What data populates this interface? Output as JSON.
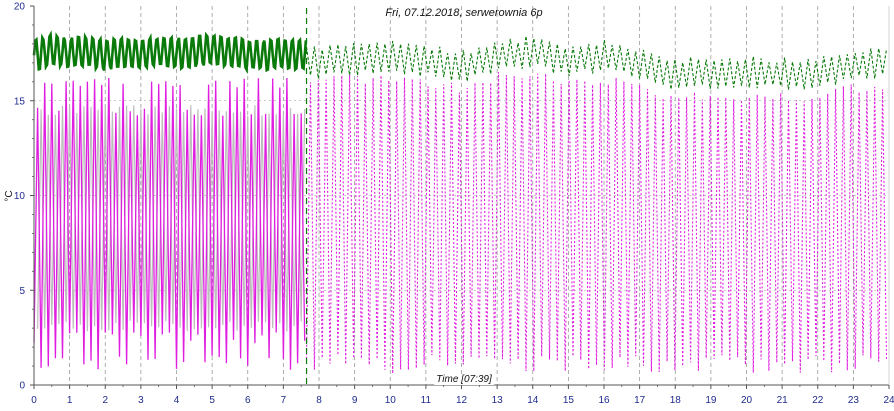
{
  "chart_data": {
    "type": "line",
    "title": "Fri, 07.12.2018, serwerownia 6p",
    "xlabel": "Time [07:39]",
    "ylabel": "°C",
    "xlim": [
      0,
      24
    ],
    "ylim": [
      0,
      20
    ],
    "x_ticks": [
      "0",
      "1",
      "2",
      "3",
      "4",
      "5",
      "6",
      "7",
      "8",
      "9",
      "10",
      "11",
      "12",
      "13",
      "14",
      "15",
      "16",
      "17",
      "18",
      "19",
      "20",
      "21",
      "22",
      "23",
      "24"
    ],
    "y_ticks": [
      "0",
      "5",
      "10",
      "15",
      "20"
    ],
    "grid": true,
    "cursor_time": 7.65,
    "colors": {
      "green": "#0a7a0a",
      "magenta": "#e01ee0",
      "gray": "#bdbdbd",
      "grid": "#9a9a9a",
      "axis": "#555555",
      "tick_text": "#1f2b8f"
    },
    "series": [
      {
        "color_key": "green",
        "style": "solid",
        "x_range": [
          0,
          7.65
        ],
        "base": 17.3,
        "amp_low": 0.75,
        "amp_high": 0.9,
        "period_h": 0.2,
        "envelope": [
          [
            0,
            17.4
          ],
          [
            0.5,
            17.7
          ],
          [
            1.0,
            17.5
          ],
          [
            1.5,
            17.6
          ],
          [
            2.0,
            17.4
          ],
          [
            2.5,
            17.6
          ],
          [
            3.0,
            17.5
          ],
          [
            3.5,
            17.6
          ],
          [
            4.0,
            17.5
          ],
          [
            4.5,
            17.6
          ],
          [
            5.0,
            17.7
          ],
          [
            5.5,
            17.6
          ],
          [
            6.0,
            17.4
          ],
          [
            6.5,
            17.4
          ],
          [
            7.0,
            17.5
          ],
          [
            7.65,
            17.4
          ]
        ]
      },
      {
        "color_key": "green",
        "style": "dashed",
        "x_range": [
          7.65,
          24
        ],
        "amp_low": 0.8,
        "amp_high": 0.8,
        "period_h": 0.22,
        "envelope": [
          [
            7.65,
            17.0
          ],
          [
            9,
            17.2
          ],
          [
            10,
            17.3
          ],
          [
            11,
            17.1
          ],
          [
            12,
            16.8
          ],
          [
            13,
            17.3
          ],
          [
            14,
            17.6
          ],
          [
            15,
            17.1
          ],
          [
            16,
            17.4
          ],
          [
            17,
            16.9
          ],
          [
            18,
            16.4
          ],
          [
            19,
            16.5
          ],
          [
            20,
            16.5
          ],
          [
            21,
            16.4
          ],
          [
            22,
            16.5
          ],
          [
            23,
            16.9
          ],
          [
            24,
            17.0
          ]
        ]
      },
      {
        "color_key": "magenta",
        "style": "solid",
        "x_range": [
          0,
          7.65
        ],
        "period_h": 0.2,
        "low": 0.8,
        "high": 16.2,
        "mid_low": 2.2,
        "mid_high": 14.8
      },
      {
        "color_key": "gray",
        "style": "solid",
        "x_range": [
          0.1,
          7.65
        ],
        "period_h": 0.2,
        "low": 2.8,
        "high": 14.8
      },
      {
        "color_key": "magenta",
        "style": "dashed",
        "x_range": [
          7.65,
          24
        ],
        "period_h": 0.22,
        "low": 0.6,
        "high_envelope": [
          [
            7.65,
            16.3
          ],
          [
            9,
            16.4
          ],
          [
            10,
            16.4
          ],
          [
            11,
            16.1
          ],
          [
            12,
            15.9
          ],
          [
            13,
            16.5
          ],
          [
            14,
            16.7
          ],
          [
            15,
            16.2
          ],
          [
            16,
            16.4
          ],
          [
            17,
            15.9
          ],
          [
            18,
            15.4
          ],
          [
            19,
            15.5
          ],
          [
            20,
            15.5
          ],
          [
            21,
            15.4
          ],
          [
            22,
            15.5
          ],
          [
            23,
            15.9
          ],
          [
            24,
            16.0
          ]
        ]
      }
    ]
  }
}
